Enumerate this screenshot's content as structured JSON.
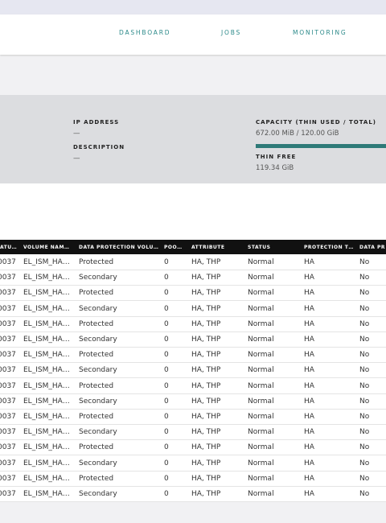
{
  "nav": {
    "tabs": [
      "DASHBOARD",
      "JOBS",
      "MONITORING"
    ]
  },
  "details": {
    "ip_label": "IP ADDRESS",
    "ip_value": "—",
    "description_label": "DESCRIPTION",
    "description_value": "—",
    "capacity_label": "CAPACITY (THIN USED / TOTAL)",
    "capacity_value": "672.00 MiB / 120.00 GiB",
    "thin_free_label": "THIN FREE",
    "thin_free_value": "119.34 GiB"
  },
  "table": {
    "headers": [
      "ATU…",
      "VOLUME NAM…",
      "DATA PROTECTION VOLU…",
      "POO…",
      "ATTRIBUTE",
      "STATUS",
      "PROTECTION T…",
      "DATA PR"
    ],
    "rows": [
      [
        "0037",
        "EL_ISM_HA…",
        "Protected",
        "0",
        "HA, THP",
        "Normal",
        "HA",
        "No"
      ],
      [
        "0037",
        "EL_ISM_HA…",
        "Secondary",
        "0",
        "HA, THP",
        "Normal",
        "HA",
        "No"
      ],
      [
        "0037",
        "EL_ISM_HA…",
        "Protected",
        "0",
        "HA, THP",
        "Normal",
        "HA",
        "No"
      ],
      [
        "0037",
        "EL_ISM_HA…",
        "Secondary",
        "0",
        "HA, THP",
        "Normal",
        "HA",
        "No"
      ],
      [
        "0037",
        "EL_ISM_HA…",
        "Protected",
        "0",
        "HA, THP",
        "Normal",
        "HA",
        "No"
      ],
      [
        "0037",
        "EL_ISM_HA…",
        "Secondary",
        "0",
        "HA, THP",
        "Normal",
        "HA",
        "No"
      ],
      [
        "0037",
        "EL_ISM_HA…",
        "Protected",
        "0",
        "HA, THP",
        "Normal",
        "HA",
        "No"
      ],
      [
        "0037",
        "EL_ISM_HA…",
        "Secondary",
        "0",
        "HA, THP",
        "Normal",
        "HA",
        "No"
      ],
      [
        "0037",
        "EL_ISM_HA…",
        "Protected",
        "0",
        "HA, THP",
        "Normal",
        "HA",
        "No"
      ],
      [
        "0037",
        "EL_ISM_HA…",
        "Secondary",
        "0",
        "HA, THP",
        "Normal",
        "HA",
        "No"
      ],
      [
        "0037",
        "EL_ISM_HA…",
        "Protected",
        "0",
        "HA, THP",
        "Normal",
        "HA",
        "No"
      ],
      [
        "0037",
        "EL_ISM_HA…",
        "Secondary",
        "0",
        "HA, THP",
        "Normal",
        "HA",
        "No"
      ],
      [
        "0037",
        "EL_ISM_HA…",
        "Protected",
        "0",
        "HA, THP",
        "Normal",
        "HA",
        "No"
      ],
      [
        "0037",
        "EL_ISM_HA…",
        "Secondary",
        "0",
        "HA, THP",
        "Normal",
        "HA",
        "No"
      ],
      [
        "0037",
        "EL_ISM_HA…",
        "Protected",
        "0",
        "HA, THP",
        "Normal",
        "HA",
        "No"
      ],
      [
        "0037",
        "EL_ISM_HA…",
        "Secondary",
        "0",
        "HA, THP",
        "Normal",
        "HA",
        "No"
      ]
    ]
  }
}
